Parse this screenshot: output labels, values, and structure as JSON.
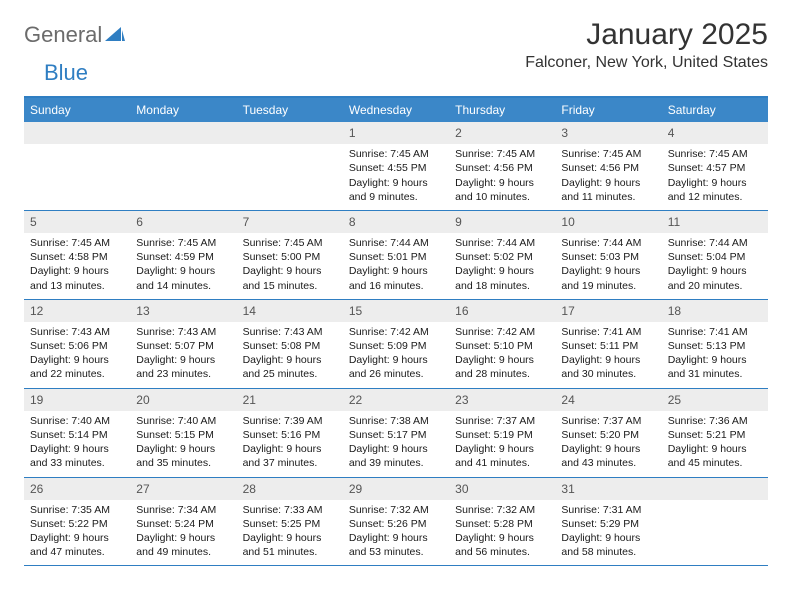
{
  "brand": {
    "part1": "General",
    "part2": "Blue"
  },
  "title": "January 2025",
  "location": "Falconer, New York, United States",
  "colors": {
    "header_bg": "#3b87c8",
    "border": "#2f7ec2",
    "daynum_bg": "#ededed",
    "text": "#1a1a1a",
    "muted": "#555555",
    "logo_gray": "#6b6b6b"
  },
  "day_names": [
    "Sunday",
    "Monday",
    "Tuesday",
    "Wednesday",
    "Thursday",
    "Friday",
    "Saturday"
  ],
  "weeks": [
    [
      {
        "n": "",
        "lines": []
      },
      {
        "n": "",
        "lines": []
      },
      {
        "n": "",
        "lines": []
      },
      {
        "n": "1",
        "lines": [
          "Sunrise: 7:45 AM",
          "Sunset: 4:55 PM",
          "Daylight: 9 hours",
          "and 9 minutes."
        ]
      },
      {
        "n": "2",
        "lines": [
          "Sunrise: 7:45 AM",
          "Sunset: 4:56 PM",
          "Daylight: 9 hours",
          "and 10 minutes."
        ]
      },
      {
        "n": "3",
        "lines": [
          "Sunrise: 7:45 AM",
          "Sunset: 4:56 PM",
          "Daylight: 9 hours",
          "and 11 minutes."
        ]
      },
      {
        "n": "4",
        "lines": [
          "Sunrise: 7:45 AM",
          "Sunset: 4:57 PM",
          "Daylight: 9 hours",
          "and 12 minutes."
        ]
      }
    ],
    [
      {
        "n": "5",
        "lines": [
          "Sunrise: 7:45 AM",
          "Sunset: 4:58 PM",
          "Daylight: 9 hours",
          "and 13 minutes."
        ]
      },
      {
        "n": "6",
        "lines": [
          "Sunrise: 7:45 AM",
          "Sunset: 4:59 PM",
          "Daylight: 9 hours",
          "and 14 minutes."
        ]
      },
      {
        "n": "7",
        "lines": [
          "Sunrise: 7:45 AM",
          "Sunset: 5:00 PM",
          "Daylight: 9 hours",
          "and 15 minutes."
        ]
      },
      {
        "n": "8",
        "lines": [
          "Sunrise: 7:44 AM",
          "Sunset: 5:01 PM",
          "Daylight: 9 hours",
          "and 16 minutes."
        ]
      },
      {
        "n": "9",
        "lines": [
          "Sunrise: 7:44 AM",
          "Sunset: 5:02 PM",
          "Daylight: 9 hours",
          "and 18 minutes."
        ]
      },
      {
        "n": "10",
        "lines": [
          "Sunrise: 7:44 AM",
          "Sunset: 5:03 PM",
          "Daylight: 9 hours",
          "and 19 minutes."
        ]
      },
      {
        "n": "11",
        "lines": [
          "Sunrise: 7:44 AM",
          "Sunset: 5:04 PM",
          "Daylight: 9 hours",
          "and 20 minutes."
        ]
      }
    ],
    [
      {
        "n": "12",
        "lines": [
          "Sunrise: 7:43 AM",
          "Sunset: 5:06 PM",
          "Daylight: 9 hours",
          "and 22 minutes."
        ]
      },
      {
        "n": "13",
        "lines": [
          "Sunrise: 7:43 AM",
          "Sunset: 5:07 PM",
          "Daylight: 9 hours",
          "and 23 minutes."
        ]
      },
      {
        "n": "14",
        "lines": [
          "Sunrise: 7:43 AM",
          "Sunset: 5:08 PM",
          "Daylight: 9 hours",
          "and 25 minutes."
        ]
      },
      {
        "n": "15",
        "lines": [
          "Sunrise: 7:42 AM",
          "Sunset: 5:09 PM",
          "Daylight: 9 hours",
          "and 26 minutes."
        ]
      },
      {
        "n": "16",
        "lines": [
          "Sunrise: 7:42 AM",
          "Sunset: 5:10 PM",
          "Daylight: 9 hours",
          "and 28 minutes."
        ]
      },
      {
        "n": "17",
        "lines": [
          "Sunrise: 7:41 AM",
          "Sunset: 5:11 PM",
          "Daylight: 9 hours",
          "and 30 minutes."
        ]
      },
      {
        "n": "18",
        "lines": [
          "Sunrise: 7:41 AM",
          "Sunset: 5:13 PM",
          "Daylight: 9 hours",
          "and 31 minutes."
        ]
      }
    ],
    [
      {
        "n": "19",
        "lines": [
          "Sunrise: 7:40 AM",
          "Sunset: 5:14 PM",
          "Daylight: 9 hours",
          "and 33 minutes."
        ]
      },
      {
        "n": "20",
        "lines": [
          "Sunrise: 7:40 AM",
          "Sunset: 5:15 PM",
          "Daylight: 9 hours",
          "and 35 minutes."
        ]
      },
      {
        "n": "21",
        "lines": [
          "Sunrise: 7:39 AM",
          "Sunset: 5:16 PM",
          "Daylight: 9 hours",
          "and 37 minutes."
        ]
      },
      {
        "n": "22",
        "lines": [
          "Sunrise: 7:38 AM",
          "Sunset: 5:17 PM",
          "Daylight: 9 hours",
          "and 39 minutes."
        ]
      },
      {
        "n": "23",
        "lines": [
          "Sunrise: 7:37 AM",
          "Sunset: 5:19 PM",
          "Daylight: 9 hours",
          "and 41 minutes."
        ]
      },
      {
        "n": "24",
        "lines": [
          "Sunrise: 7:37 AM",
          "Sunset: 5:20 PM",
          "Daylight: 9 hours",
          "and 43 minutes."
        ]
      },
      {
        "n": "25",
        "lines": [
          "Sunrise: 7:36 AM",
          "Sunset: 5:21 PM",
          "Daylight: 9 hours",
          "and 45 minutes."
        ]
      }
    ],
    [
      {
        "n": "26",
        "lines": [
          "Sunrise: 7:35 AM",
          "Sunset: 5:22 PM",
          "Daylight: 9 hours",
          "and 47 minutes."
        ]
      },
      {
        "n": "27",
        "lines": [
          "Sunrise: 7:34 AM",
          "Sunset: 5:24 PM",
          "Daylight: 9 hours",
          "and 49 minutes."
        ]
      },
      {
        "n": "28",
        "lines": [
          "Sunrise: 7:33 AM",
          "Sunset: 5:25 PM",
          "Daylight: 9 hours",
          "and 51 minutes."
        ]
      },
      {
        "n": "29",
        "lines": [
          "Sunrise: 7:32 AM",
          "Sunset: 5:26 PM",
          "Daylight: 9 hours",
          "and 53 minutes."
        ]
      },
      {
        "n": "30",
        "lines": [
          "Sunrise: 7:32 AM",
          "Sunset: 5:28 PM",
          "Daylight: 9 hours",
          "and 56 minutes."
        ]
      },
      {
        "n": "31",
        "lines": [
          "Sunrise: 7:31 AM",
          "Sunset: 5:29 PM",
          "Daylight: 9 hours",
          "and 58 minutes."
        ]
      },
      {
        "n": "",
        "lines": []
      }
    ]
  ]
}
